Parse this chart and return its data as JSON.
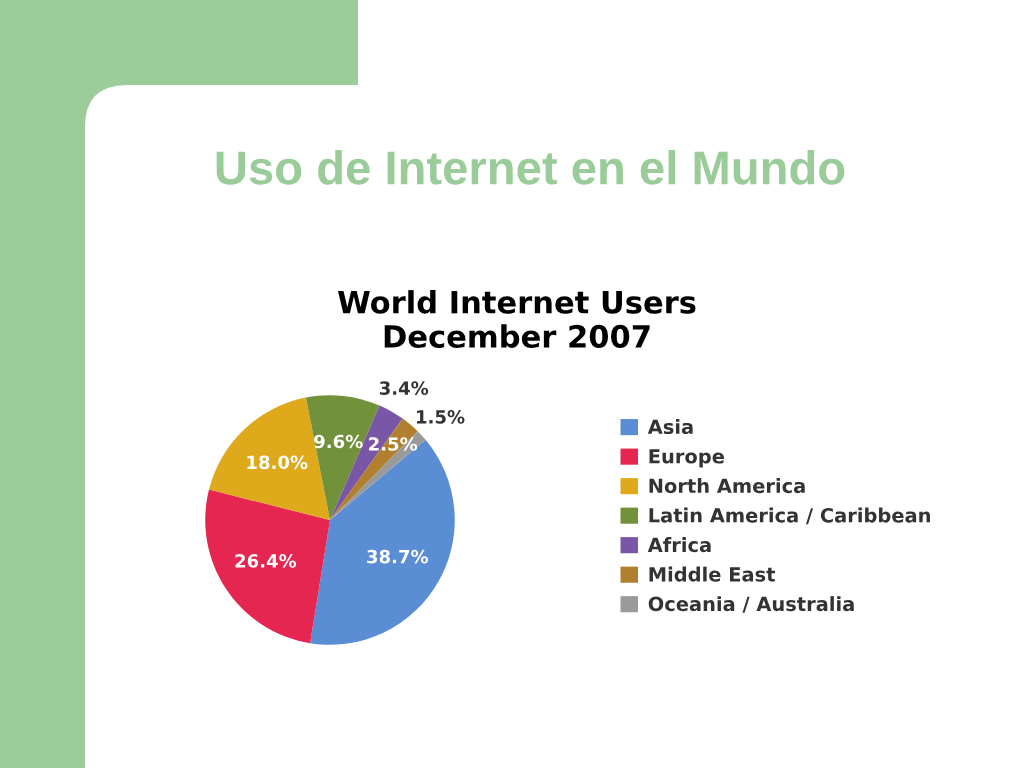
{
  "chart_data": {
    "type": "pie",
    "title": "Uso de Internet en el Mundo",
    "subtitle": "World Internet Users\nDecember 2007",
    "categories": [
      "Asia",
      "Europe",
      "North America",
      "Latin America / Caribbean",
      "Africa",
      "Middle East",
      "Oceania / Australia"
    ],
    "values": [
      38.7,
      26.4,
      18.0,
      9.6,
      3.4,
      2.5,
      1.5
    ],
    "colors": [
      "#5a8dd3",
      "#e52650",
      "#deaa1c",
      "#72913b",
      "#7a57a6",
      "#b0802f",
      "#9a9a9a"
    ],
    "value_labels": [
      "38.7%",
      "26.4%",
      "18.0%",
      "9.6%",
      "3.4%",
      "2.5%",
      "1.5%"
    ],
    "legend": "right"
  }
}
